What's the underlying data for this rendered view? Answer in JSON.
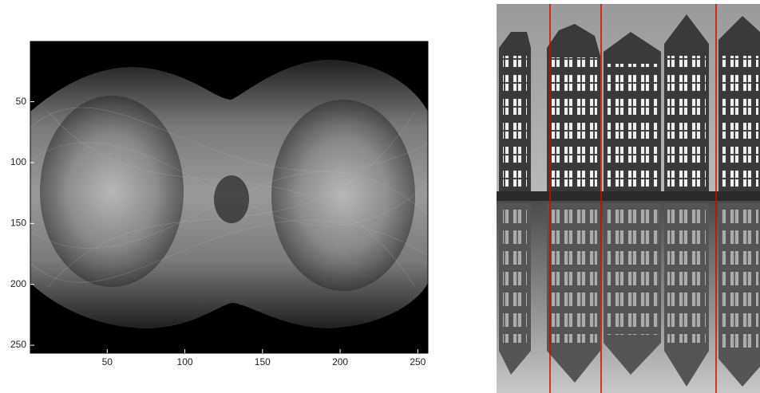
{
  "chart_data": {
    "type": "image",
    "xlim": [
      0.5,
      256.5
    ],
    "ylim": [
      0.5,
      256.5
    ],
    "y_reversed": true,
    "xticks": [
      50,
      100,
      150,
      200,
      250
    ],
    "yticks": [
      50,
      100,
      150,
      200,
      250
    ]
  }
}
